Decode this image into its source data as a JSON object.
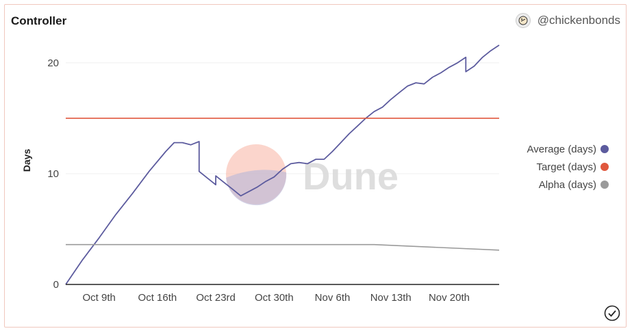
{
  "header": {
    "title": "Controller",
    "author": "@chickenbonds"
  },
  "watermark": "Dune",
  "colors": {
    "average": "#5c5b9e",
    "target": "#e0573d",
    "alpha": "#9a9a9a",
    "grid": "#efefef",
    "card_border": "#f0c7bd"
  },
  "chart_data": {
    "type": "line",
    "title": "",
    "xlabel": "",
    "ylabel": "Days",
    "ylim": [
      0,
      22.4
    ],
    "xlim": [
      "2022-10-05",
      "2022-11-26"
    ],
    "yticks": [
      0,
      10,
      20
    ],
    "xticks": [
      {
        "date": "2022-10-09",
        "label": "Oct 9th"
      },
      {
        "date": "2022-10-16",
        "label": "Oct 16th"
      },
      {
        "date": "2022-10-23",
        "label": "Oct 23rd"
      },
      {
        "date": "2022-10-30",
        "label": "Oct 30th"
      },
      {
        "date": "2022-11-06",
        "label": "Nov 6th"
      },
      {
        "date": "2022-11-13",
        "label": "Nov 13th"
      },
      {
        "date": "2022-11-20",
        "label": "Nov 20th"
      }
    ],
    "grid": true,
    "legend_position": "right",
    "series": [
      {
        "name": "Average (days)",
        "x": [
          "2022-10-05",
          "2022-10-07",
          "2022-10-09",
          "2022-10-11",
          "2022-10-13",
          "2022-10-15",
          "2022-10-17",
          "2022-10-18",
          "2022-10-19",
          "2022-10-20",
          "2022-10-21",
          "2022-10-21",
          "2022-10-22",
          "2022-10-23",
          "2022-10-23",
          "2022-10-24",
          "2022-10-25",
          "2022-10-26",
          "2022-10-27",
          "2022-10-28",
          "2022-10-29",
          "2022-10-30",
          "2022-10-31",
          "2022-11-01",
          "2022-11-02",
          "2022-11-03",
          "2022-11-04",
          "2022-11-05",
          "2022-11-06",
          "2022-11-07",
          "2022-11-08",
          "2022-11-09",
          "2022-11-10",
          "2022-11-11",
          "2022-11-12",
          "2022-11-13",
          "2022-11-14",
          "2022-11-15",
          "2022-11-16",
          "2022-11-17",
          "2022-11-18",
          "2022-11-19",
          "2022-11-20",
          "2022-11-21",
          "2022-11-22",
          "2022-11-22",
          "2022-11-23",
          "2022-11-24",
          "2022-11-25",
          "2022-11-26"
        ],
        "y": [
          0,
          2.2,
          4.2,
          6.3,
          8.2,
          10.2,
          12,
          12.8,
          12.8,
          12.6,
          12.9,
          10.2,
          9.6,
          9,
          9.8,
          9.2,
          8.6,
          8,
          8.4,
          8.8,
          9.3,
          9.7,
          10.4,
          10.9,
          11,
          10.9,
          11.3,
          11.3,
          12,
          12.8,
          13.6,
          14.3,
          15,
          15.6,
          16,
          16.7,
          17.3,
          17.9,
          18.2,
          18.1,
          18.7,
          19.1,
          19.6,
          20,
          20.5,
          19.2,
          19.7,
          20.5,
          21.1,
          21.6
        ]
      },
      {
        "name": "Target (days)",
        "x": [
          "2022-10-05",
          "2022-11-26"
        ],
        "y": [
          15,
          15
        ]
      },
      {
        "name": "Alpha (days)",
        "x": [
          "2022-10-05",
          "2022-11-11",
          "2022-11-26"
        ],
        "y": [
          3.6,
          3.6,
          3.1
        ]
      }
    ]
  }
}
